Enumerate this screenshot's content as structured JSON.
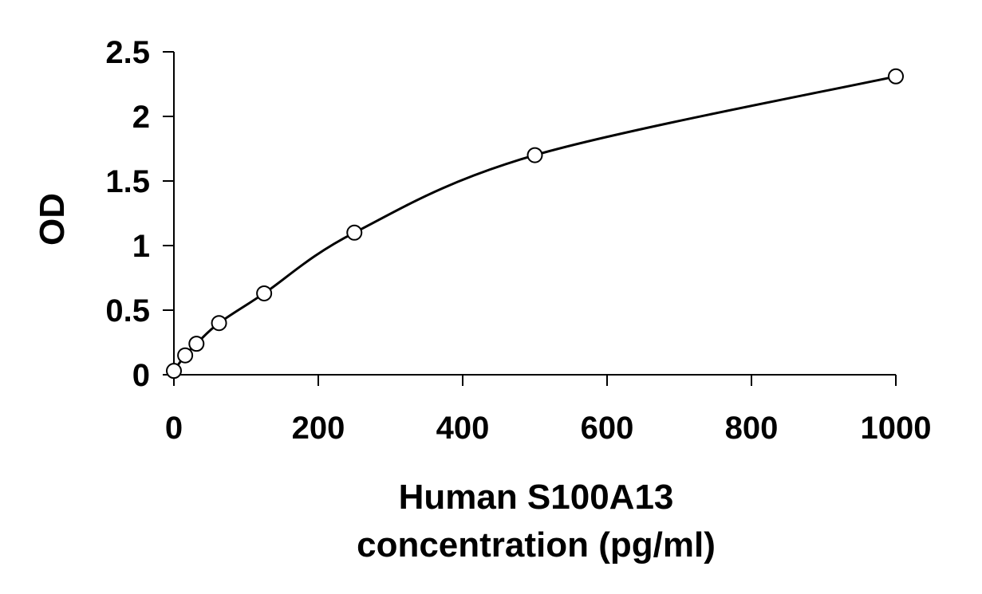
{
  "chart_data": {
    "type": "scatter",
    "title": "",
    "xlabel": [
      "Human S100A13",
      "concentration (pg/ml)"
    ],
    "ylabel": "OD",
    "xlim": [
      0,
      1000
    ],
    "ylim": [
      0,
      2.5
    ],
    "xticks": [
      0,
      200,
      400,
      600,
      800,
      1000
    ],
    "yticks": [
      0,
      0.5,
      1,
      1.5,
      2,
      2.5
    ],
    "xtick_labels": [
      "0",
      "200",
      "400",
      "600",
      "800",
      "1000"
    ],
    "ytick_labels": [
      "0",
      "0.5",
      "1",
      "1.5",
      "2",
      "2.5"
    ],
    "grid": false,
    "legend": "none",
    "series": [
      {
        "x": [
          0,
          15.6,
          31.25,
          62.5,
          125,
          250,
          500,
          1000
        ],
        "y": [
          0.03,
          0.15,
          0.24,
          0.4,
          0.63,
          1.1,
          1.7,
          2.31
        ],
        "marker": "open-circle",
        "fit_line": true
      }
    ],
    "colors": {
      "line": "#000000",
      "marker_stroke": "#000000",
      "marker_fill": "#ffffff"
    }
  }
}
